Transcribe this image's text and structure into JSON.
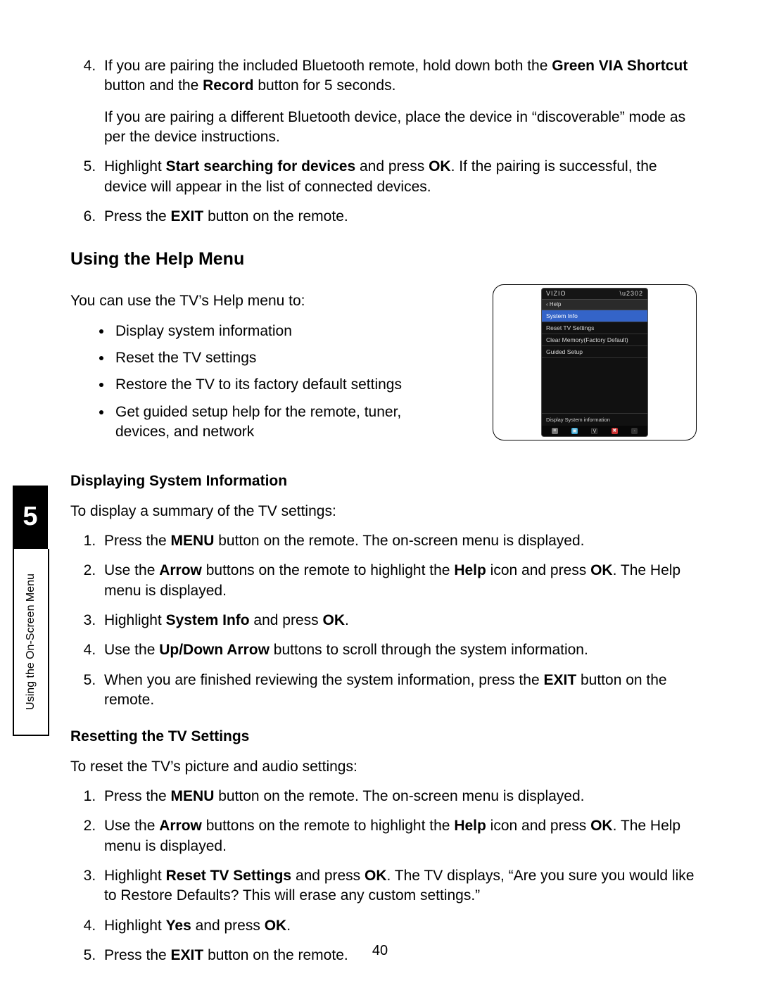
{
  "side": {
    "chapter": "5",
    "label": "Using the On-Screen Menu"
  },
  "pageNumber": "40",
  "top": {
    "items": {
      "4": {
        "p1_a": "If you are pairing the included Bluetooth remote, hold down both the ",
        "p1_b1": "Green VIA Shortcut",
        "p1_c": " button and the ",
        "p1_b2": "Record",
        "p1_d": " button for 5 seconds.",
        "p2": "If you are pairing a different Bluetooth device, place the device in “discoverable” mode as per the device instructions."
      },
      "5": {
        "a": "Highlight ",
        "b1": "Start searching for devices",
        "c": " and press ",
        "b2": "OK",
        "d": ". If the pairing is successful, the device will appear in the list of connected devices."
      },
      "6": {
        "a": "Press the ",
        "b1": "EXIT",
        "c": " button on the remote."
      }
    }
  },
  "help": {
    "heading": "Using the Help Menu",
    "intro": "You can use the TV’s Help menu to:",
    "bullets": {
      "0": "Display system information",
      "1": "Reset the TV settings",
      "2": "Restore the TV to its factory default settings",
      "3": "Get guided setup help for the remote, tuner, devices, and network"
    }
  },
  "sys": {
    "heading": "Displaying System Information",
    "intro": "To display a summary of the TV settings:",
    "items": {
      "1": {
        "a": "Press the ",
        "b1": "MENU",
        "c": " button on the remote. The on-screen menu is displayed."
      },
      "2": {
        "a": "Use the ",
        "b1": "Arrow",
        "c": " buttons on the remote to highlight the ",
        "b2": "Help",
        "d": " icon and press ",
        "b3": "OK",
        "e": ". The Help menu is displayed."
      },
      "3": {
        "a": "Highlight ",
        "b1": "System Info",
        "c": " and press ",
        "b2": "OK",
        "d": "."
      },
      "4": {
        "a": "Use the ",
        "b1": "Up/Down Arrow",
        "c": " buttons to scroll through the system information."
      },
      "5": {
        "a": "When you are finished reviewing the system information, press the ",
        "b1": "EXIT",
        "c": " button on the remote."
      }
    }
  },
  "reset": {
    "heading": "Resetting the TV Settings",
    "intro": "To reset the TV’s picture and audio settings:",
    "items": {
      "1": {
        "a": "Press the ",
        "b1": "MENU",
        "c": " button on the remote. The on-screen menu is displayed."
      },
      "2": {
        "a": "Use the ",
        "b1": "Arrow",
        "c": " buttons on the remote to highlight the ",
        "b2": "Help",
        "d": " icon and press ",
        "b3": "OK",
        "e": ". The Help menu is displayed."
      },
      "3": {
        "a": "Highlight ",
        "b1": "Reset TV Settings",
        "c": " and press ",
        "b2": "OK",
        "d": ". The TV displays, “Are you sure you would like to Restore Defaults? This will erase any custom settings.”"
      },
      "4": {
        "a": "Highlight ",
        "b1": "Yes",
        "c": " and press ",
        "b2": "OK",
        "d": "."
      },
      "5": {
        "a": "Press the ",
        "b1": "EXIT",
        "c": " button on the remote."
      }
    }
  },
  "tvMenu": {
    "brand": "VIZIO",
    "back": "‹  Help",
    "items": {
      "0": "System Info",
      "1": "Reset TV Settings",
      "2": "Clear Memory(Factory Default)",
      "3": "Guided Setup"
    },
    "hint": "Display System information",
    "icons": {
      "0": "≡",
      "1": "▣",
      "2": "V",
      "3": "✖",
      "4": "·"
    },
    "colors": {
      "selected_bg": "#3464c8",
      "panel_bg": "#111111",
      "border": "#444444"
    }
  }
}
